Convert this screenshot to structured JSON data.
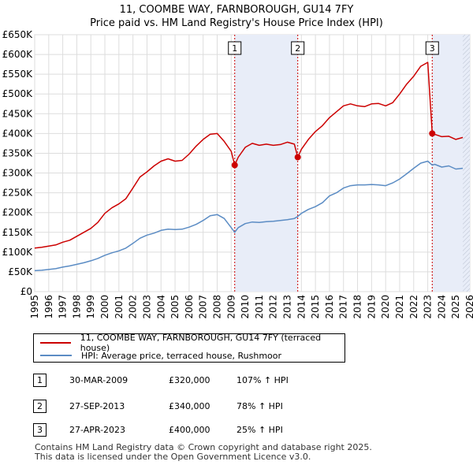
{
  "chart_data": {
    "type": "line",
    "title": "11, COOMBE WAY, FARNBOROUGH, GU14 7FY",
    "subtitle": "Price paid vs. HM Land Registry's House Price Index (HPI)",
    "xlim": [
      1995,
      2026
    ],
    "ylim": [
      0,
      650000
    ],
    "x_ticks": [
      "1995",
      "1996",
      "1997",
      "1998",
      "1999",
      "2000",
      "2001",
      "2002",
      "2003",
      "2004",
      "2005",
      "2006",
      "2007",
      "2008",
      "2009",
      "2010",
      "2011",
      "2012",
      "2013",
      "2014",
      "2015",
      "2016",
      "2017",
      "2018",
      "2019",
      "2020",
      "2021",
      "2022",
      "2023",
      "2024",
      "2025",
      "2026"
    ],
    "y_ticks": [
      {
        "value": 0,
        "label": "£0"
      },
      {
        "value": 50000,
        "label": "£50K"
      },
      {
        "value": 100000,
        "label": "£100K"
      },
      {
        "value": 150000,
        "label": "£150K"
      },
      {
        "value": 200000,
        "label": "£200K"
      },
      {
        "value": 250000,
        "label": "£250K"
      },
      {
        "value": 300000,
        "label": "£300K"
      },
      {
        "value": 350000,
        "label": "£350K"
      },
      {
        "value": 400000,
        "label": "£400K"
      },
      {
        "value": 450000,
        "label": "£450K"
      },
      {
        "value": 500000,
        "label": "£500K"
      },
      {
        "value": 550000,
        "label": "£550K"
      },
      {
        "value": 600000,
        "label": "£600K"
      },
      {
        "value": 650000,
        "label": "£650K"
      }
    ],
    "grid": true,
    "series": [
      {
        "name": "11, COOMBE WAY, FARNBOROUGH, GU14 7FY (terraced house)",
        "color": "#cc0000",
        "x": [
          1995.0,
          1995.5,
          1996.0,
          1996.5,
          1997.0,
          1997.5,
          1998.0,
          1998.5,
          1999.0,
          1999.5,
          2000.0,
          2000.5,
          2001.0,
          2001.5,
          2002.0,
          2002.5,
          2003.0,
          2003.5,
          2004.0,
          2004.5,
          2005.0,
          2005.5,
          2006.0,
          2006.5,
          2007.0,
          2007.5,
          2008.0,
          2008.5,
          2009.0,
          2009.25,
          2009.5,
          2010.0,
          2010.5,
          2011.0,
          2011.5,
          2012.0,
          2012.5,
          2013.0,
          2013.5,
          2013.74,
          2014.0,
          2014.5,
          2015.0,
          2015.5,
          2016.0,
          2016.5,
          2017.0,
          2017.5,
          2018.0,
          2018.5,
          2019.0,
          2019.5,
          2020.0,
          2020.5,
          2021.0,
          2021.5,
          2022.0,
          2022.5,
          2023.0,
          2023.32,
          2023.5,
          2024.0,
          2024.5,
          2025.0,
          2025.5
        ],
        "values": [
          110000,
          112000,
          115000,
          118000,
          125000,
          130000,
          140000,
          150000,
          160000,
          175000,
          198000,
          212000,
          222000,
          235000,
          262000,
          290000,
          303000,
          318000,
          330000,
          336000,
          330000,
          332000,
          348000,
          368000,
          385000,
          398000,
          400000,
          380000,
          355000,
          320000,
          340000,
          365000,
          375000,
          370000,
          373000,
          370000,
          372000,
          378000,
          373000,
          340000,
          360000,
          385000,
          405000,
          420000,
          440000,
          455000,
          470000,
          475000,
          470000,
          468000,
          475000,
          476000,
          470000,
          478000,
          500000,
          525000,
          545000,
          570000,
          580000,
          400000,
          398000,
          392000,
          393000,
          385000,
          390000
        ]
      },
      {
        "name": "HPI: Average price, terraced house, Rushmoor",
        "color": "#5b8cc4",
        "x": [
          1995.0,
          1995.5,
          1996.0,
          1996.5,
          1997.0,
          1997.5,
          1998.0,
          1998.5,
          1999.0,
          1999.5,
          2000.0,
          2000.5,
          2001.0,
          2001.5,
          2002.0,
          2002.5,
          2003.0,
          2003.5,
          2004.0,
          2004.5,
          2005.0,
          2005.5,
          2006.0,
          2006.5,
          2007.0,
          2007.5,
          2008.0,
          2008.5,
          2009.0,
          2009.25,
          2009.5,
          2010.0,
          2010.5,
          2011.0,
          2011.5,
          2012.0,
          2012.5,
          2013.0,
          2013.5,
          2013.74,
          2014.0,
          2014.5,
          2015.0,
          2015.5,
          2016.0,
          2016.5,
          2017.0,
          2017.5,
          2018.0,
          2018.5,
          2019.0,
          2019.5,
          2020.0,
          2020.5,
          2021.0,
          2021.5,
          2022.0,
          2022.5,
          2023.0,
          2023.32,
          2023.5,
          2024.0,
          2024.5,
          2025.0,
          2025.5
        ],
        "values": [
          53000,
          54000,
          56000,
          58000,
          62000,
          65000,
          69000,
          73000,
          78000,
          84000,
          92000,
          98000,
          103000,
          110000,
          122000,
          135000,
          143000,
          148000,
          155000,
          158000,
          157000,
          158000,
          163000,
          170000,
          180000,
          192000,
          195000,
          185000,
          162000,
          150000,
          162000,
          172000,
          176000,
          175000,
          177000,
          178000,
          180000,
          182000,
          185000,
          190000,
          198000,
          208000,
          215000,
          225000,
          242000,
          250000,
          262000,
          268000,
          270000,
          270000,
          271000,
          270000,
          268000,
          275000,
          285000,
          298000,
          312000,
          325000,
          330000,
          320000,
          322000,
          315000,
          318000,
          310000,
          312000
        ]
      }
    ],
    "sales": [
      {
        "num": "1",
        "x": 2009.25,
        "value": 320000,
        "date": "30-MAR-2009",
        "price": "£320,000",
        "hpi": "107% ↑ HPI"
      },
      {
        "num": "2",
        "x": 2013.74,
        "value": 340000,
        "date": "27-SEP-2013",
        "price": "£340,000",
        "hpi": "78% ↑ HPI"
      },
      {
        "num": "3",
        "x": 2023.32,
        "value": 400000,
        "date": "27-APR-2023",
        "price": "£400,000",
        "hpi": "25% ↑ HPI"
      }
    ],
    "shaded_spans": [
      [
        2009.25,
        2013.74
      ],
      [
        2023.32,
        2026
      ]
    ],
    "hatched_span": [
      2025.5,
      2026
    ]
  },
  "legend": {
    "line1": "11, COOMBE WAY, FARNBOROUGH, GU14 7FY (terraced house)",
    "line2": "HPI: Average price, terraced house, Rushmoor"
  },
  "footer": {
    "line1": "Contains HM Land Registry data © Crown copyright and database right 2025.",
    "line2": "This data is licensed under the Open Government Licence v3.0."
  }
}
